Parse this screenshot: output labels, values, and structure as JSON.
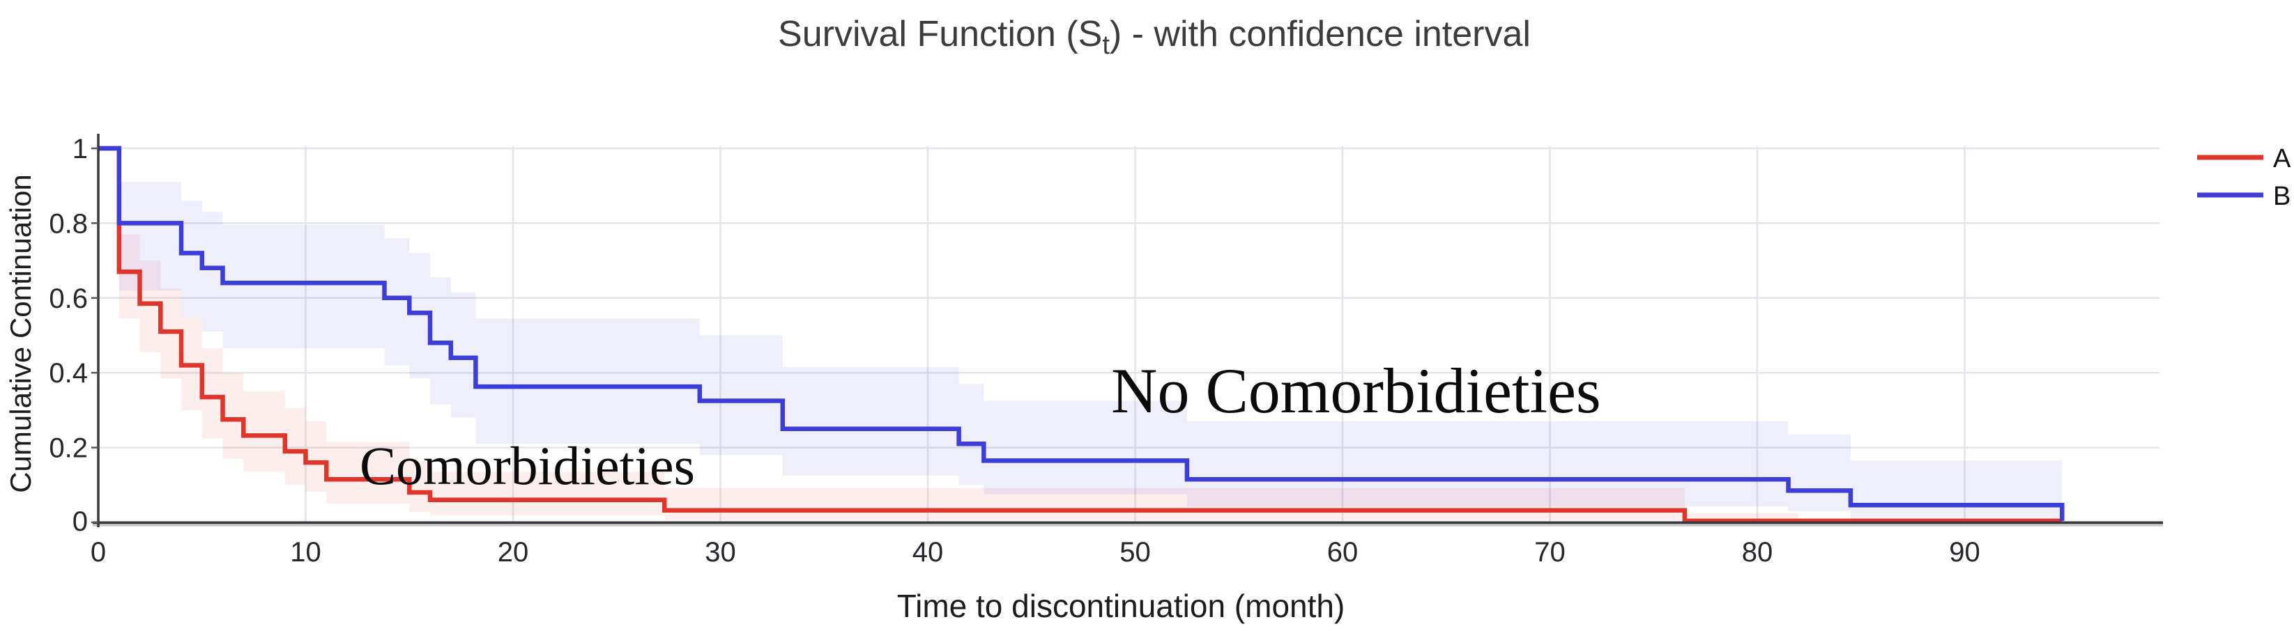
{
  "title": {
    "main": "Survival Function (S",
    "sub": "t",
    "rest": ") - with confidence interval"
  },
  "axes": {
    "x_label": "Time to discontinuation (month)",
    "y_label": "Cumulative Continuation",
    "x_tick_labels": [
      "0",
      "10",
      "20",
      "30",
      "40",
      "50",
      "60",
      "70",
      "80",
      "90"
    ],
    "x_tick_values": [
      0,
      10,
      20,
      30,
      40,
      50,
      60,
      70,
      80,
      90
    ],
    "y_tick_labels": [
      "1",
      "0.8",
      "0.6",
      "0.4",
      "0.2",
      "0"
    ],
    "y_tick_values": [
      1,
      0.8,
      0.6,
      0.4,
      0.2,
      0
    ]
  },
  "legend": {
    "position": "top-right",
    "items": [
      {
        "label": "A",
        "color": "#e0352b"
      },
      {
        "label": "B",
        "color": "#3d3dd8"
      }
    ]
  },
  "annotations": [
    {
      "text": "Comorbidieties",
      "series": "A",
      "x_month": 12.6,
      "y_value": 0.11
    },
    {
      "text": "No Comorbidieties",
      "series": "B",
      "x_month": 48.9,
      "y_value": 0.3
    }
  ],
  "colors": {
    "series_a": "#e0352b",
    "series_b": "#3d3dd8",
    "band_a": "rgba(224,53,43,0.085)",
    "band_b": "rgba(75,75,215,0.085)",
    "gridline": "#e4e4ea",
    "axis": "#3a3a3e",
    "axis_shadow": "#c6c6cb",
    "title_text": "#3c3c3c"
  },
  "chart_data": {
    "type": "line",
    "subtype": "step-survival-km",
    "title": "Survival Function (St) - with confidence interval",
    "xlabel": "Time to discontinuation (month)",
    "ylabel": "Cumulative Continuation",
    "xlim": [
      0,
      99.5
    ],
    "ylim": [
      0,
      1
    ],
    "grid": true,
    "legend_position": "right-top",
    "series": [
      {
        "name": "A",
        "group_label": "Comorbidieties",
        "color": "#e0352b",
        "steps": [
          [
            0,
            1.0
          ],
          [
            1,
            0.67
          ],
          [
            2,
            0.585
          ],
          [
            3,
            0.51
          ],
          [
            4,
            0.42
          ],
          [
            5,
            0.335
          ],
          [
            6,
            0.275
          ],
          [
            7,
            0.232
          ],
          [
            9,
            0.19
          ],
          [
            10,
            0.16
          ],
          [
            11,
            0.115
          ],
          [
            15,
            0.08
          ],
          [
            16,
            0.06
          ],
          [
            27.3,
            0.032
          ],
          [
            76.5,
            0.004
          ]
        ],
        "end_month": 94.7,
        "ci": [
          [
            1,
            0.77,
            0.545
          ],
          [
            2,
            0.7,
            0.455
          ],
          [
            3,
            0.625,
            0.385
          ],
          [
            4,
            0.55,
            0.3
          ],
          [
            5,
            0.465,
            0.225
          ],
          [
            6,
            0.4,
            0.17
          ],
          [
            7,
            0.35,
            0.135
          ],
          [
            9,
            0.305,
            0.1
          ],
          [
            10,
            0.27,
            0.082
          ],
          [
            11,
            0.215,
            0.05
          ],
          [
            15,
            0.165,
            0.028
          ],
          [
            16,
            0.135,
            0.018
          ],
          [
            27.3,
            0.092,
            0.006
          ],
          [
            76.5,
            0.025,
            0.001
          ]
        ],
        "ci_end_month": 82
      },
      {
        "name": "B",
        "group_label": "No Comorbidieties",
        "color": "#3d3dd8",
        "steps": [
          [
            0,
            1.0
          ],
          [
            1,
            0.8
          ],
          [
            4,
            0.72
          ],
          [
            5,
            0.68
          ],
          [
            6,
            0.64
          ],
          [
            13.8,
            0.6
          ],
          [
            15,
            0.56
          ],
          [
            16,
            0.48
          ],
          [
            17,
            0.44
          ],
          [
            18.2,
            0.363
          ],
          [
            29,
            0.325
          ],
          [
            33,
            0.25
          ],
          [
            41.5,
            0.21
          ],
          [
            42.7,
            0.165
          ],
          [
            52.5,
            0.115
          ],
          [
            81.5,
            0.085
          ],
          [
            84.5,
            0.046
          ]
        ],
        "end_month": 94.7,
        "end_value": 0.004,
        "ci": [
          [
            1,
            0.91,
            0.62
          ],
          [
            4,
            0.86,
            0.55
          ],
          [
            5,
            0.83,
            0.51
          ],
          [
            6,
            0.795,
            0.465
          ],
          [
            13.8,
            0.76,
            0.42
          ],
          [
            15,
            0.72,
            0.385
          ],
          [
            16,
            0.655,
            0.315
          ],
          [
            17,
            0.615,
            0.28
          ],
          [
            18.2,
            0.545,
            0.21
          ],
          [
            29,
            0.5,
            0.18
          ],
          [
            33,
            0.415,
            0.125
          ],
          [
            41.5,
            0.37,
            0.1
          ],
          [
            42.7,
            0.325,
            0.075
          ],
          [
            52.5,
            0.27,
            0.042
          ],
          [
            81.5,
            0.235,
            0.03
          ],
          [
            84.5,
            0.165,
            0.008
          ]
        ],
        "ci_end_month": 94.7
      }
    ]
  }
}
